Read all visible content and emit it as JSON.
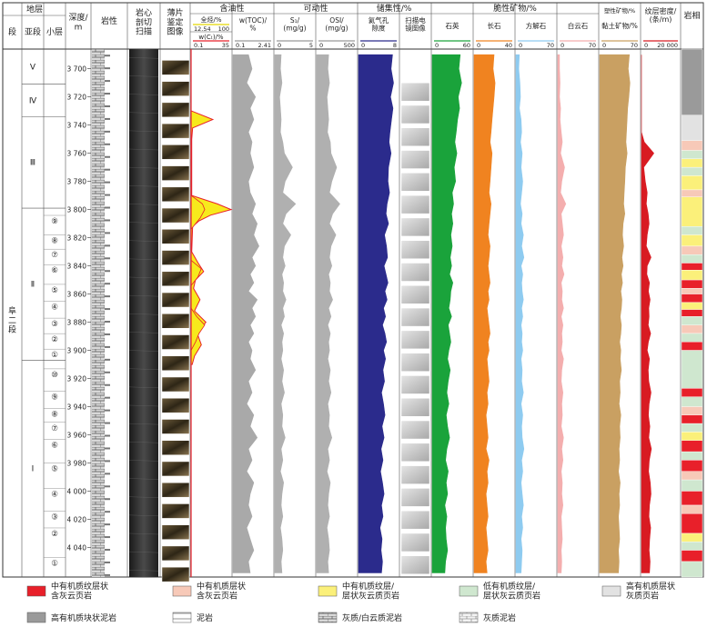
{
  "chart_data": {
    "type": "area",
    "groups": [
      {
        "label": "地层",
        "subs": [
          "段",
          "亚段",
          "小层"
        ]
      },
      {
        "label": "深度/\nm"
      },
      {
        "label": "岩性"
      },
      {
        "label": "岩心\n剖切\n扫描"
      },
      {
        "label": "薄片\n鉴定\n图像"
      },
      {
        "label": "含油性"
      },
      {
        "label": "可动性"
      },
      {
        "label": "储集性/%"
      },
      {
        "label": "脆性矿物/%"
      },
      {
        "label": "塑性矿物/%"
      },
      {
        "label": "纹层密度/\n(条/m)"
      },
      {
        "label": "岩相"
      }
    ],
    "track_headers": {
      "oil_top": {
        "label": "全烃/%",
        "min": "12.54",
        "max": "100"
      },
      "oil_bottom": {
        "label": "w(Cₜ)/%",
        "min": "0.1",
        "max": "35"
      },
      "toc": {
        "label": "w(TOC)/\n%",
        "min": "0.1",
        "max": "2.41"
      },
      "s1": {
        "label": "S₁/\n(mg/g)",
        "min": "0",
        "max": "5"
      },
      "osi": {
        "label": "OSI/\n(mg/g)",
        "min": "0",
        "max": "500"
      },
      "porosity": {
        "label": "氦气孔\n隙度",
        "min": "0",
        "max": "8"
      },
      "sem": {
        "label": "扫描电\n镜图像"
      },
      "quartz": {
        "label": "石英",
        "min": "0",
        "max": "60"
      },
      "feldspar": {
        "label": "长石",
        "min": "0",
        "max": "40"
      },
      "calcite": {
        "label": "方解石",
        "min": "0",
        "max": "70"
      },
      "dolomite": {
        "label": "白云石",
        "min": "0",
        "max": "70"
      },
      "clay": {
        "label": "黏土矿物/%",
        "min": "0",
        "max": "70"
      },
      "lamina": {
        "min": "0",
        "max": "20 000"
      }
    },
    "formation": "阜二段",
    "submembers": [
      {
        "name": "Ⅴ",
        "top": 3686,
        "bottom": 3711
      },
      {
        "name": "Ⅳ",
        "top": 3711,
        "bottom": 3734
      },
      {
        "name": "Ⅲ",
        "top": 3734,
        "bottom": 3799
      },
      {
        "name": "Ⅱ",
        "top": 3799,
        "bottom": 3907
      },
      {
        "name": "Ⅰ",
        "top": 3907,
        "bottom": 4061
      }
    ],
    "layers": [
      {
        "name": "⑨",
        "depth": 3808
      },
      {
        "name": "⑧",
        "depth": 3822
      },
      {
        "name": "⑦",
        "depth": 3832
      },
      {
        "name": "⑥",
        "depth": 3843
      },
      {
        "name": "⑤",
        "depth": 3857
      },
      {
        "name": "④",
        "depth": 3869
      },
      {
        "name": "③",
        "depth": 3881
      },
      {
        "name": "②",
        "depth": 3892
      },
      {
        "name": "①",
        "depth": 3903
      },
      {
        "name": "⑩",
        "depth": 3917
      },
      {
        "name": "⑨",
        "depth": 3933
      },
      {
        "name": "⑧",
        "depth": 3945
      },
      {
        "name": "⑦",
        "depth": 3955
      },
      {
        "name": "⑥",
        "depth": 3967
      },
      {
        "name": "⑤",
        "depth": 3984
      },
      {
        "name": "④",
        "depth": 4002
      },
      {
        "name": "③",
        "depth": 4018
      },
      {
        "name": "②",
        "depth": 4030
      },
      {
        "name": "①",
        "depth": 4051
      }
    ],
    "depth_range": [
      3686,
      4061
    ],
    "depth_ticks": [
      "3 700",
      "3 720",
      "3 740",
      "3 760",
      "3 780",
      "3 800",
      "3 820",
      "3 840",
      "3 860",
      "3 880",
      "3 900",
      "3 920",
      "3 940",
      "3 960",
      "3 980",
      "4 000",
      "4 020",
      "4 040"
    ],
    "depth_tick_values": [
      3700,
      3720,
      3740,
      3760,
      3780,
      3800,
      3820,
      3840,
      3860,
      3880,
      3900,
      3920,
      3940,
      3960,
      3980,
      4000,
      4020,
      4040
    ],
    "sample_depths": [
      3690,
      3700,
      3710,
      3720,
      3728,
      3736,
      3745,
      3752,
      3760,
      3770,
      3780,
      3788,
      3796,
      3803,
      3810,
      3818,
      3826,
      3834,
      3840,
      3846,
      3852,
      3858,
      3864,
      3870,
      3876,
      3882,
      3888,
      3894,
      3900,
      3906,
      3914,
      3922,
      3930,
      3938,
      3946,
      3954,
      3962,
      3970,
      3978,
      3986,
      3994,
      4002,
      4010,
      4018,
      4026,
      4034,
      4042,
      4050,
      4058
    ],
    "series": [
      {
        "key": "toc",
        "color": "#a9a9a9",
        "values": [
          1.0,
          1.2,
          0.9,
          1.4,
          1.1,
          1.3,
          1.0,
          1.2,
          1.1,
          1.3,
          1.0,
          1.1,
          1.4,
          1.2,
          1.5,
          1.3,
          1.6,
          1.2,
          1.4,
          1.1,
          1.3,
          1.0,
          1.5,
          1.2,
          1.4,
          1.1,
          1.3,
          1.0,
          1.2,
          1.1,
          1.4,
          1.0,
          1.2,
          0.9,
          1.3,
          1.1,
          1.5,
          1.0,
          1.2,
          0.9,
          1.3,
          1.1,
          1.0,
          1.2,
          0.9,
          1.1,
          1.3,
          1.0,
          1.1
        ]
      },
      {
        "key": "s1",
        "color": "#b0b0b0",
        "values": [
          0.8,
          0.7,
          0.9,
          0.6,
          0.7,
          0.8,
          0.7,
          1.0,
          1.2,
          2.2,
          1.3,
          1.0,
          2.6,
          1.4,
          1.0,
          2.0,
          1.2,
          1.0,
          1.3,
          0.9,
          1.1,
          1.0,
          1.4,
          1.0,
          1.2,
          0.8,
          1.1,
          0.9,
          1.0,
          0.8,
          1.1,
          0.9,
          1.2,
          0.8,
          1.0,
          0.9,
          1.3,
          0.8,
          1.0,
          0.7,
          1.1,
          0.9,
          0.8,
          1.0,
          0.7,
          0.9,
          1.0,
          0.8,
          0.9
        ]
      },
      {
        "key": "osi",
        "color": "#b0b0b0",
        "values": [
          150,
          140,
          160,
          130,
          140,
          150,
          135,
          170,
          180,
          250,
          190,
          160,
          290,
          200,
          160,
          240,
          180,
          160,
          190,
          150,
          170,
          160,
          200,
          150,
          180,
          140,
          170,
          150,
          160,
          140,
          170,
          150,
          180,
          140,
          160,
          150,
          190,
          140,
          160,
          130,
          170,
          150,
          140,
          160,
          130,
          150,
          160,
          140,
          150
        ]
      },
      {
        "key": "porosity",
        "color": "#2b2b8c",
        "values": [
          6.8,
          6.5,
          7.0,
          6.4,
          6.9,
          6.6,
          6.3,
          6.1,
          6.5,
          6.0,
          5.9,
          6.2,
          5.7,
          5.5,
          6.0,
          5.2,
          5.6,
          5.8,
          5.1,
          5.5,
          5.9,
          5.3,
          5.7,
          5.0,
          5.4,
          4.8,
          5.3,
          5.6,
          5.0,
          5.4,
          4.9,
          5.2,
          4.6,
          5.0,
          5.3,
          4.7,
          5.1,
          4.5,
          4.9,
          4.4,
          4.8,
          5.1,
          4.6,
          4.9,
          4.3,
          4.7,
          4.5,
          4.8,
          4.6
        ]
      },
      {
        "key": "quartz",
        "color": "#1aa33b",
        "values": [
          42,
          40,
          44,
          39,
          41,
          38,
          36,
          34,
          37,
          33,
          35,
          30,
          32,
          29,
          31,
          28,
          30,
          27,
          29,
          26,
          31,
          28,
          27,
          25,
          29,
          24,
          26,
          28,
          25,
          23,
          27,
          24,
          22,
          25,
          21,
          23,
          26,
          22,
          20,
          24,
          21,
          23,
          19,
          22,
          20,
          21,
          23,
          20,
          19
        ]
      },
      {
        "key": "feldspar",
        "color": "#f08320",
        "values": [
          20,
          19,
          21,
          20,
          19,
          18,
          17,
          16,
          18,
          17,
          16,
          15,
          17,
          16,
          15,
          14,
          16,
          15,
          14,
          15,
          16,
          14,
          15,
          13,
          14,
          15,
          16,
          14,
          15,
          13,
          14,
          15,
          13,
          14,
          12,
          13,
          14,
          12,
          15,
          13,
          14,
          12,
          13,
          14,
          12,
          13,
          14,
          12,
          13
        ]
      },
      {
        "key": "calcite",
        "color": "#8ecbf0",
        "values": [
          6,
          5,
          7,
          8,
          6,
          9,
          10,
          8,
          11,
          9,
          12,
          10,
          8,
          11,
          9,
          13,
          10,
          14,
          9,
          12,
          10,
          11,
          13,
          10,
          12,
          9,
          11,
          10,
          12,
          9,
          11,
          10,
          13,
          9,
          12,
          10,
          11,
          14,
          10,
          12,
          9,
          11,
          13,
          10,
          12,
          9,
          11,
          10,
          9
        ]
      },
      {
        "key": "dolomite",
        "color": "#f4aeae",
        "values": [
          3,
          3,
          4,
          3,
          5,
          4,
          6,
          8,
          5,
          12,
          7,
          5,
          14,
          6,
          8,
          10,
          6,
          9,
          7,
          11,
          6,
          8,
          7,
          10,
          6,
          9,
          7,
          8,
          6,
          10,
          7,
          6,
          9,
          7,
          8,
          6,
          10,
          7,
          9,
          6,
          8,
          7,
          9,
          6,
          7,
          8,
          6,
          7,
          6
        ]
      },
      {
        "key": "clay",
        "color": "#c9a062",
        "values": [
          52,
          50,
          53,
          51,
          49,
          48,
          47,
          46,
          48,
          45,
          44,
          43,
          42,
          44,
          41,
          40,
          42,
          39,
          41,
          38,
          40,
          37,
          39,
          38,
          36,
          38,
          37,
          35,
          37,
          36,
          38,
          35,
          36,
          34,
          37,
          35,
          36,
          34,
          35,
          33,
          36,
          34,
          35,
          33,
          34,
          35,
          33,
          34,
          33
        ]
      },
      {
        "key": "lamina",
        "color": "#d81b22",
        "values": [
          0,
          0,
          0,
          0,
          0,
          0,
          0,
          1500,
          6500,
          1200,
          2000,
          3000,
          2500,
          3500,
          4000,
          3000,
          2500,
          5000,
          3000,
          2800,
          4200,
          3600,
          4500,
          3800,
          4000,
          3500,
          4800,
          3600,
          3000,
          4200,
          3500,
          3800,
          5000,
          4000,
          3600,
          4400,
          3800,
          5200,
          4100,
          3700,
          4600,
          5000,
          4200,
          3900,
          4800,
          4300,
          4000,
          4500,
          4200
        ]
      }
    ],
    "oil_total": {
      "depths": [
        3730,
        3736,
        3742,
        3750,
        3790,
        3796,
        3800,
        3804,
        3808,
        3812,
        3830,
        3838,
        3844,
        3850,
        3856,
        3864,
        3872,
        3880,
        3888,
        3896,
        3904,
        3910
      ],
      "values": [
        14,
        60,
        16,
        14,
        14,
        70,
        100,
        55,
        30,
        16,
        14,
        28,
        40,
        22,
        18,
        32,
        20,
        45,
        26,
        35,
        20,
        15
      ]
    },
    "oil_c1": {
      "depths": [
        3790,
        3796,
        3800,
        3806,
        3814,
        3836,
        3842,
        3848,
        3854,
        3870,
        3876,
        3882,
        3888,
        3894,
        3900
      ],
      "values": [
        0,
        10,
        12,
        8,
        0,
        0,
        9,
        6,
        0,
        0,
        5,
        12,
        7,
        4,
        0
      ]
    },
    "facies_colors": {
      "f1": "#e8202a",
      "f2": "#f7c9b8",
      "f3": "#fbf07a",
      "f4": "#cfe7cf",
      "f5": "#e2e2e2",
      "f6": "#9a9a9a"
    },
    "facies": [
      {
        "from": 3686,
        "to": 3733,
        "f": "f6"
      },
      {
        "from": 3733,
        "to": 3751,
        "f": "f5"
      },
      {
        "from": 3751,
        "to": 3758,
        "f": "f2"
      },
      {
        "from": 3758,
        "to": 3764,
        "f": "f4"
      },
      {
        "from": 3764,
        "to": 3770,
        "f": "f3"
      },
      {
        "from": 3770,
        "to": 3776,
        "f": "f4"
      },
      {
        "from": 3776,
        "to": 3786,
        "f": "f3"
      },
      {
        "from": 3786,
        "to": 3791,
        "f": "f2"
      },
      {
        "from": 3791,
        "to": 3812,
        "f": "f3"
      },
      {
        "from": 3812,
        "to": 3818,
        "f": "f4"
      },
      {
        "from": 3818,
        "to": 3826,
        "f": "f3"
      },
      {
        "from": 3826,
        "to": 3832,
        "f": "f2"
      },
      {
        "from": 3832,
        "to": 3838,
        "f": "f4"
      },
      {
        "from": 3838,
        "to": 3843,
        "f": "f1"
      },
      {
        "from": 3843,
        "to": 3850,
        "f": "f3"
      },
      {
        "from": 3850,
        "to": 3856,
        "f": "f1"
      },
      {
        "from": 3856,
        "to": 3860,
        "f": "f2"
      },
      {
        "from": 3860,
        "to": 3866,
        "f": "f1"
      },
      {
        "from": 3866,
        "to": 3871,
        "f": "f3"
      },
      {
        "from": 3871,
        "to": 3876,
        "f": "f1"
      },
      {
        "from": 3876,
        "to": 3882,
        "f": "f4"
      },
      {
        "from": 3882,
        "to": 3888,
        "f": "f2"
      },
      {
        "from": 3888,
        "to": 3894,
        "f": "f4"
      },
      {
        "from": 3894,
        "to": 3900,
        "f": "f1"
      },
      {
        "from": 3900,
        "to": 3927,
        "f": "f4"
      },
      {
        "from": 3927,
        "to": 3933,
        "f": "f1"
      },
      {
        "from": 3933,
        "to": 3940,
        "f": "f4"
      },
      {
        "from": 3940,
        "to": 3946,
        "f": "f2"
      },
      {
        "from": 3946,
        "to": 3952,
        "f": "f1"
      },
      {
        "from": 3952,
        "to": 3958,
        "f": "f4"
      },
      {
        "from": 3958,
        "to": 3964,
        "f": "f3"
      },
      {
        "from": 3964,
        "to": 3972,
        "f": "f1"
      },
      {
        "from": 3972,
        "to": 3978,
        "f": "f4"
      },
      {
        "from": 3978,
        "to": 3986,
        "f": "f1"
      },
      {
        "from": 3986,
        "to": 3992,
        "f": "f2"
      },
      {
        "from": 3992,
        "to": 4000,
        "f": "f4"
      },
      {
        "from": 4000,
        "to": 4010,
        "f": "f1"
      },
      {
        "from": 4010,
        "to": 4016,
        "f": "f2"
      },
      {
        "from": 4016,
        "to": 4030,
        "f": "f1"
      },
      {
        "from": 4030,
        "to": 4036,
        "f": "f3"
      },
      {
        "from": 4036,
        "to": 4042,
        "f": "f4"
      },
      {
        "from": 4042,
        "to": 4050,
        "f": "f1"
      },
      {
        "from": 4050,
        "to": 4061,
        "f": "f4"
      }
    ],
    "legend": [
      {
        "label": "中有机质纹层状\n含灰云页岩",
        "f": "f1"
      },
      {
        "label": "中有机质层状\n含灰云页岩",
        "f": "f2"
      },
      {
        "label": "中有机质纹层/\n层状灰云质页岩",
        "f": "f3"
      },
      {
        "label": "低有机质纹层/\n层状灰云质页岩",
        "f": "f4"
      },
      {
        "label": "高有机质层状\n灰质页岩",
        "f": "f5"
      },
      {
        "label": "高有机质块状泥岩",
        "f": "f6"
      },
      {
        "label": "泥岩",
        "pattern": "mud"
      },
      {
        "label": "灰质/白云质泥岩",
        "pattern": "brick"
      },
      {
        "label": "灰质泥岩",
        "pattern": "brick2"
      }
    ]
  }
}
